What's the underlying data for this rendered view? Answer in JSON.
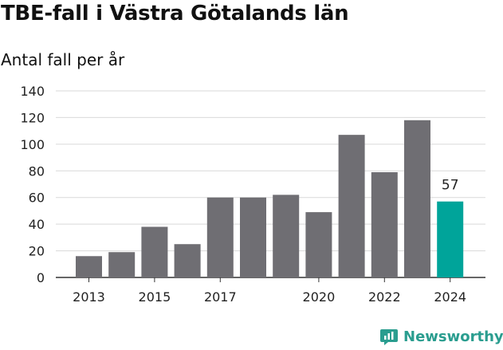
{
  "title": "TBE-fall i Västra Götalands län",
  "subtitle": "Antal fall per år",
  "brand": {
    "name": "Newsworthy",
    "icon": "newsworthy-logo-icon"
  },
  "colors": {
    "bar": "#6f6e73",
    "highlight": "#00a49a",
    "brand": "#2a9d8f",
    "grid": "#d9d9d9",
    "text": "#222222"
  },
  "chart_data": {
    "type": "bar",
    "categories": [
      "2013",
      "2014",
      "2015",
      "2016",
      "2017",
      "2018",
      "2019",
      "2020",
      "2021",
      "2022",
      "2023",
      "2024"
    ],
    "values": [
      16,
      19,
      38,
      25,
      60,
      60,
      62,
      49,
      107,
      79,
      118,
      57
    ],
    "x_tick_labels": [
      "2013",
      "2015",
      "2017",
      "2020",
      "2022",
      "2024"
    ],
    "y_ticks": [
      0,
      20,
      40,
      60,
      80,
      100,
      120,
      140
    ],
    "ylim": [
      0,
      140
    ],
    "highlight": {
      "category": "2024",
      "value_label": "57"
    },
    "title": "TBE-fall i Västra Götalands län",
    "ylabel": "",
    "xlabel": "",
    "grid": true
  }
}
